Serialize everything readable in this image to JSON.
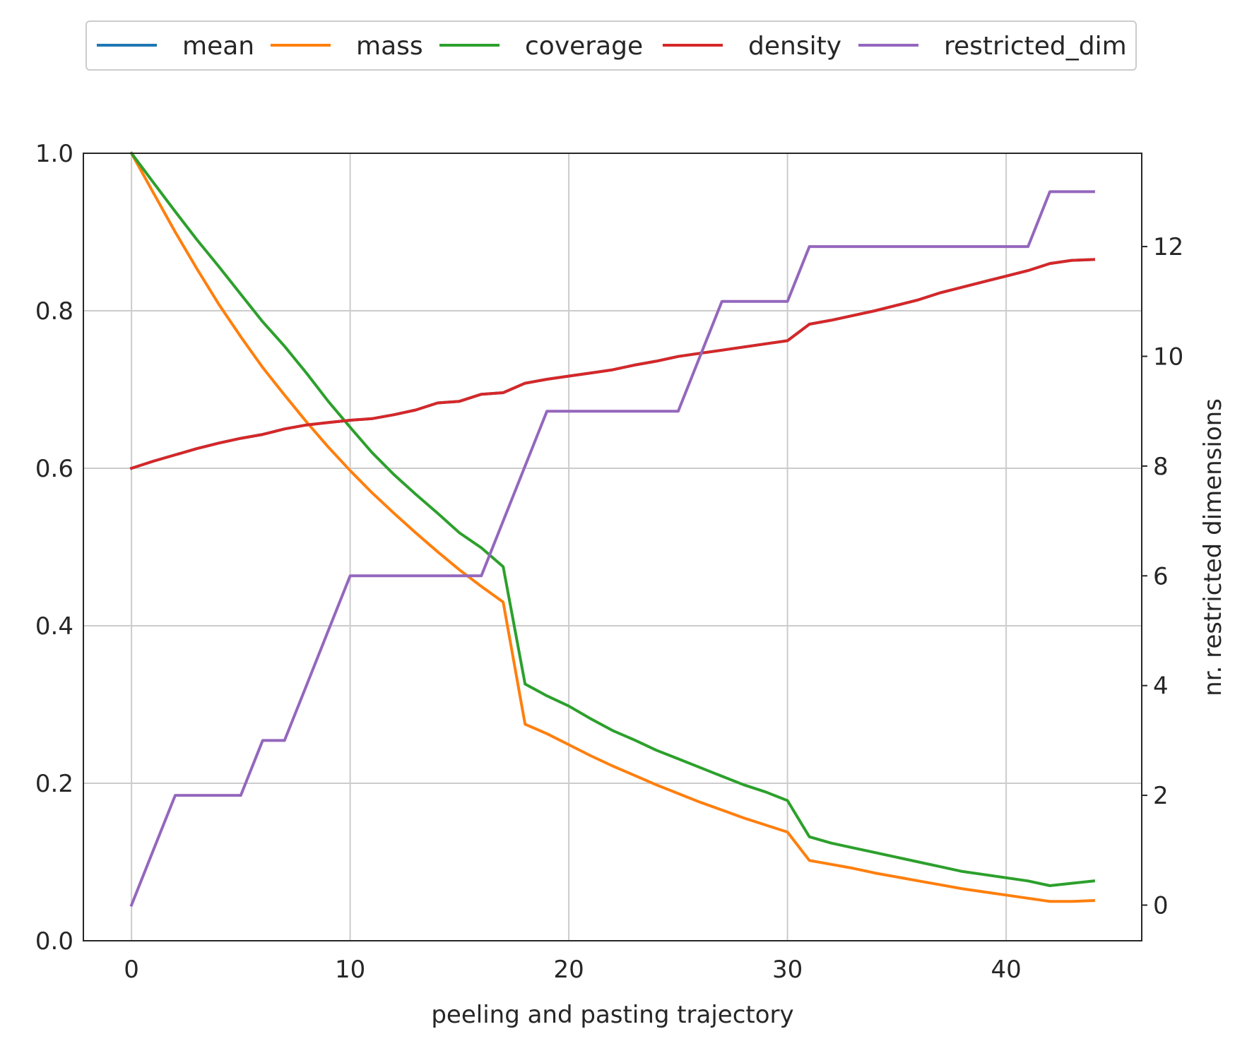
{
  "chart_data": {
    "type": "line",
    "xlabel": "peeling and pasting trajectory",
    "ylabel": "",
    "ylabel_right": "nr. restricted dimensions",
    "xlim": [
      -2.2,
      46.2
    ],
    "ylim": [
      0.0,
      1.0
    ],
    "ylim_right": [
      -0.65,
      13.7
    ],
    "x_ticks": [
      0,
      10,
      20,
      30,
      40
    ],
    "y_ticks": [
      0.0,
      0.2,
      0.4,
      0.6,
      0.8,
      1.0
    ],
    "y_tick_labels": [
      "0.0",
      "0.2",
      "0.4",
      "0.6",
      "0.8",
      "1.0"
    ],
    "y_ticks_right": [
      0,
      2,
      4,
      6,
      8,
      10,
      12
    ],
    "grid": true,
    "legend_position": "top",
    "colors": {
      "mean": "#1f77b4",
      "mass": "#ff7f0e",
      "coverage": "#2ca02c",
      "density": "#d62728",
      "restricted_dim": "#9467bd"
    },
    "x": [
      0,
      1,
      2,
      3,
      4,
      5,
      6,
      7,
      8,
      9,
      10,
      11,
      12,
      13,
      14,
      15,
      16,
      17,
      18,
      19,
      20,
      21,
      22,
      23,
      24,
      25,
      26,
      27,
      28,
      29,
      30,
      31,
      32,
      33,
      34,
      35,
      36,
      37,
      38,
      39,
      40,
      41,
      42,
      43,
      44
    ],
    "series": [
      {
        "name": "mean",
        "axis": "left",
        "values": [
          0.6,
          0.609,
          0.617,
          0.625,
          0.632,
          0.638,
          0.643,
          0.65,
          0.655,
          0.658,
          0.661,
          0.663,
          0.668,
          0.674,
          0.683,
          0.685,
          0.694,
          0.696,
          0.708,
          0.713,
          0.717,
          0.721,
          0.725,
          0.731,
          0.736,
          0.742,
          0.746,
          0.75,
          0.754,
          0.758,
          0.762,
          0.783,
          0.788,
          0.794,
          0.8,
          0.807,
          0.814,
          0.823,
          0.83,
          0.837,
          0.844,
          0.851,
          0.86,
          0.864,
          0.865
        ]
      },
      {
        "name": "mass",
        "axis": "left",
        "values": [
          1.0,
          0.95,
          0.9,
          0.853,
          0.808,
          0.767,
          0.728,
          0.693,
          0.659,
          0.627,
          0.597,
          0.569,
          0.543,
          0.518,
          0.494,
          0.471,
          0.45,
          0.43,
          0.275,
          0.263,
          0.249,
          0.235,
          0.222,
          0.21,
          0.198,
          0.187,
          0.176,
          0.166,
          0.156,
          0.147,
          0.138,
          0.102,
          0.097,
          0.092,
          0.086,
          0.081,
          0.076,
          0.071,
          0.066,
          0.062,
          0.058,
          0.054,
          0.05,
          0.05,
          0.051
        ]
      },
      {
        "name": "coverage",
        "axis": "left",
        "values": [
          1.0,
          0.963,
          0.926,
          0.89,
          0.856,
          0.821,
          0.786,
          0.755,
          0.721,
          0.685,
          0.652,
          0.62,
          0.592,
          0.567,
          0.543,
          0.518,
          0.499,
          0.475,
          0.326,
          0.311,
          0.298,
          0.282,
          0.267,
          0.255,
          0.242,
          0.231,
          0.22,
          0.209,
          0.198,
          0.189,
          0.178,
          0.132,
          0.124,
          0.118,
          0.112,
          0.106,
          0.1,
          0.094,
          0.088,
          0.084,
          0.08,
          0.076,
          0.07,
          0.073,
          0.076
        ]
      },
      {
        "name": "density",
        "axis": "left",
        "values": [
          0.6,
          0.609,
          0.617,
          0.625,
          0.632,
          0.638,
          0.643,
          0.65,
          0.655,
          0.658,
          0.661,
          0.663,
          0.668,
          0.674,
          0.683,
          0.685,
          0.694,
          0.696,
          0.708,
          0.713,
          0.717,
          0.721,
          0.725,
          0.731,
          0.736,
          0.742,
          0.746,
          0.75,
          0.754,
          0.758,
          0.762,
          0.783,
          0.788,
          0.794,
          0.8,
          0.807,
          0.814,
          0.823,
          0.83,
          0.837,
          0.844,
          0.851,
          0.86,
          0.864,
          0.865
        ]
      },
      {
        "name": "restricted_dim",
        "axis": "right",
        "values": [
          0,
          1,
          2,
          2,
          2,
          2,
          3,
          3,
          4,
          5,
          6,
          6,
          6,
          6,
          6,
          6,
          6,
          7,
          8,
          9,
          9,
          9,
          9,
          9,
          9,
          9,
          10,
          11,
          11,
          11,
          11,
          12,
          12,
          12,
          12,
          12,
          12,
          12,
          12,
          12,
          12,
          12,
          13,
          13,
          13
        ]
      }
    ]
  }
}
